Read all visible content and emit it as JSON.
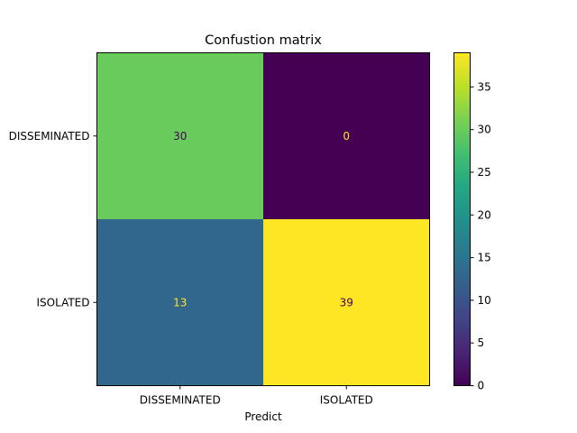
{
  "chart_data": {
    "type": "heatmap",
    "title": "Confustion matrix",
    "xlabel": "Predict",
    "ylabel": "",
    "x_categories": [
      "DISSEMINATED",
      "ISOLATED"
    ],
    "y_categories": [
      "DISSEMINATED",
      "ISOLATED"
    ],
    "values": [
      [
        30,
        0
      ],
      [
        13,
        39
      ]
    ],
    "colormap": "viridis",
    "colorbar": {
      "range": [
        0,
        39
      ],
      "ticks": [
        0,
        5,
        10,
        15,
        20,
        25,
        30,
        35
      ]
    },
    "text_colors": {
      "on_dark": "#fde725",
      "on_light": "#440154"
    }
  }
}
